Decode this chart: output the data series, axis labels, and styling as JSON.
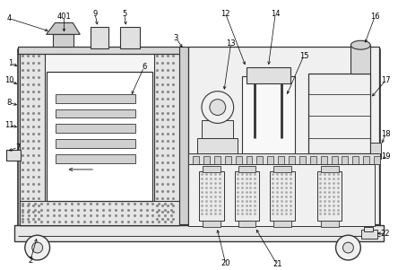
{
  "bg_color": "#ffffff",
  "lc": "#333333",
  "lc_thin": "#555555",
  "gray_fill": "#d8d8d8",
  "light_fill": "#f0f0f0",
  "white_fill": "#ffffff",
  "dot_color": "#888888"
}
